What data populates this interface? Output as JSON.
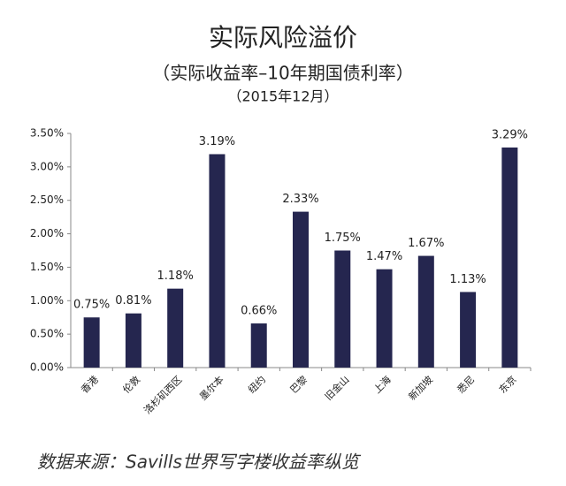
{
  "chart_data": {
    "type": "bar",
    "title": "实际风险溢价",
    "subtitle": "（实际收益率–10年期国债利率）",
    "date_note": "（2015年12月）",
    "source": "数据来源：Savills世界写字楼收益率纵览",
    "categories": [
      "香港",
      "伦敦",
      "洛杉矶西区",
      "墨尔本",
      "纽约",
      "巴黎",
      "旧金山",
      "上海",
      "新加坡",
      "悉尼",
      "东京"
    ],
    "values": [
      0.75,
      0.81,
      1.18,
      3.19,
      0.66,
      2.33,
      1.75,
      1.47,
      1.67,
      1.13,
      3.29
    ],
    "value_labels": [
      "0.75%",
      "0.81%",
      "1.18%",
      "3.19%",
      "0.66%",
      "2.33%",
      "1.75%",
      "1.47%",
      "1.67%",
      "1.13%",
      "3.29%"
    ],
    "color": "#25264f",
    "ylim": [
      0,
      3.5
    ],
    "yticks": [
      {
        "value": 0,
        "label": "0.00%"
      },
      {
        "value": 0.5,
        "label": "0.50%"
      },
      {
        "value": 1,
        "label": "1.00%"
      },
      {
        "value": 1.5,
        "label": "1.50%"
      },
      {
        "value": 2,
        "label": "2.00%"
      },
      {
        "value": 2.5,
        "label": "2.50%"
      },
      {
        "value": 3,
        "label": "3.00%"
      },
      {
        "value": 3.5,
        "label": "3.50%"
      }
    ],
    "grid": false
  }
}
